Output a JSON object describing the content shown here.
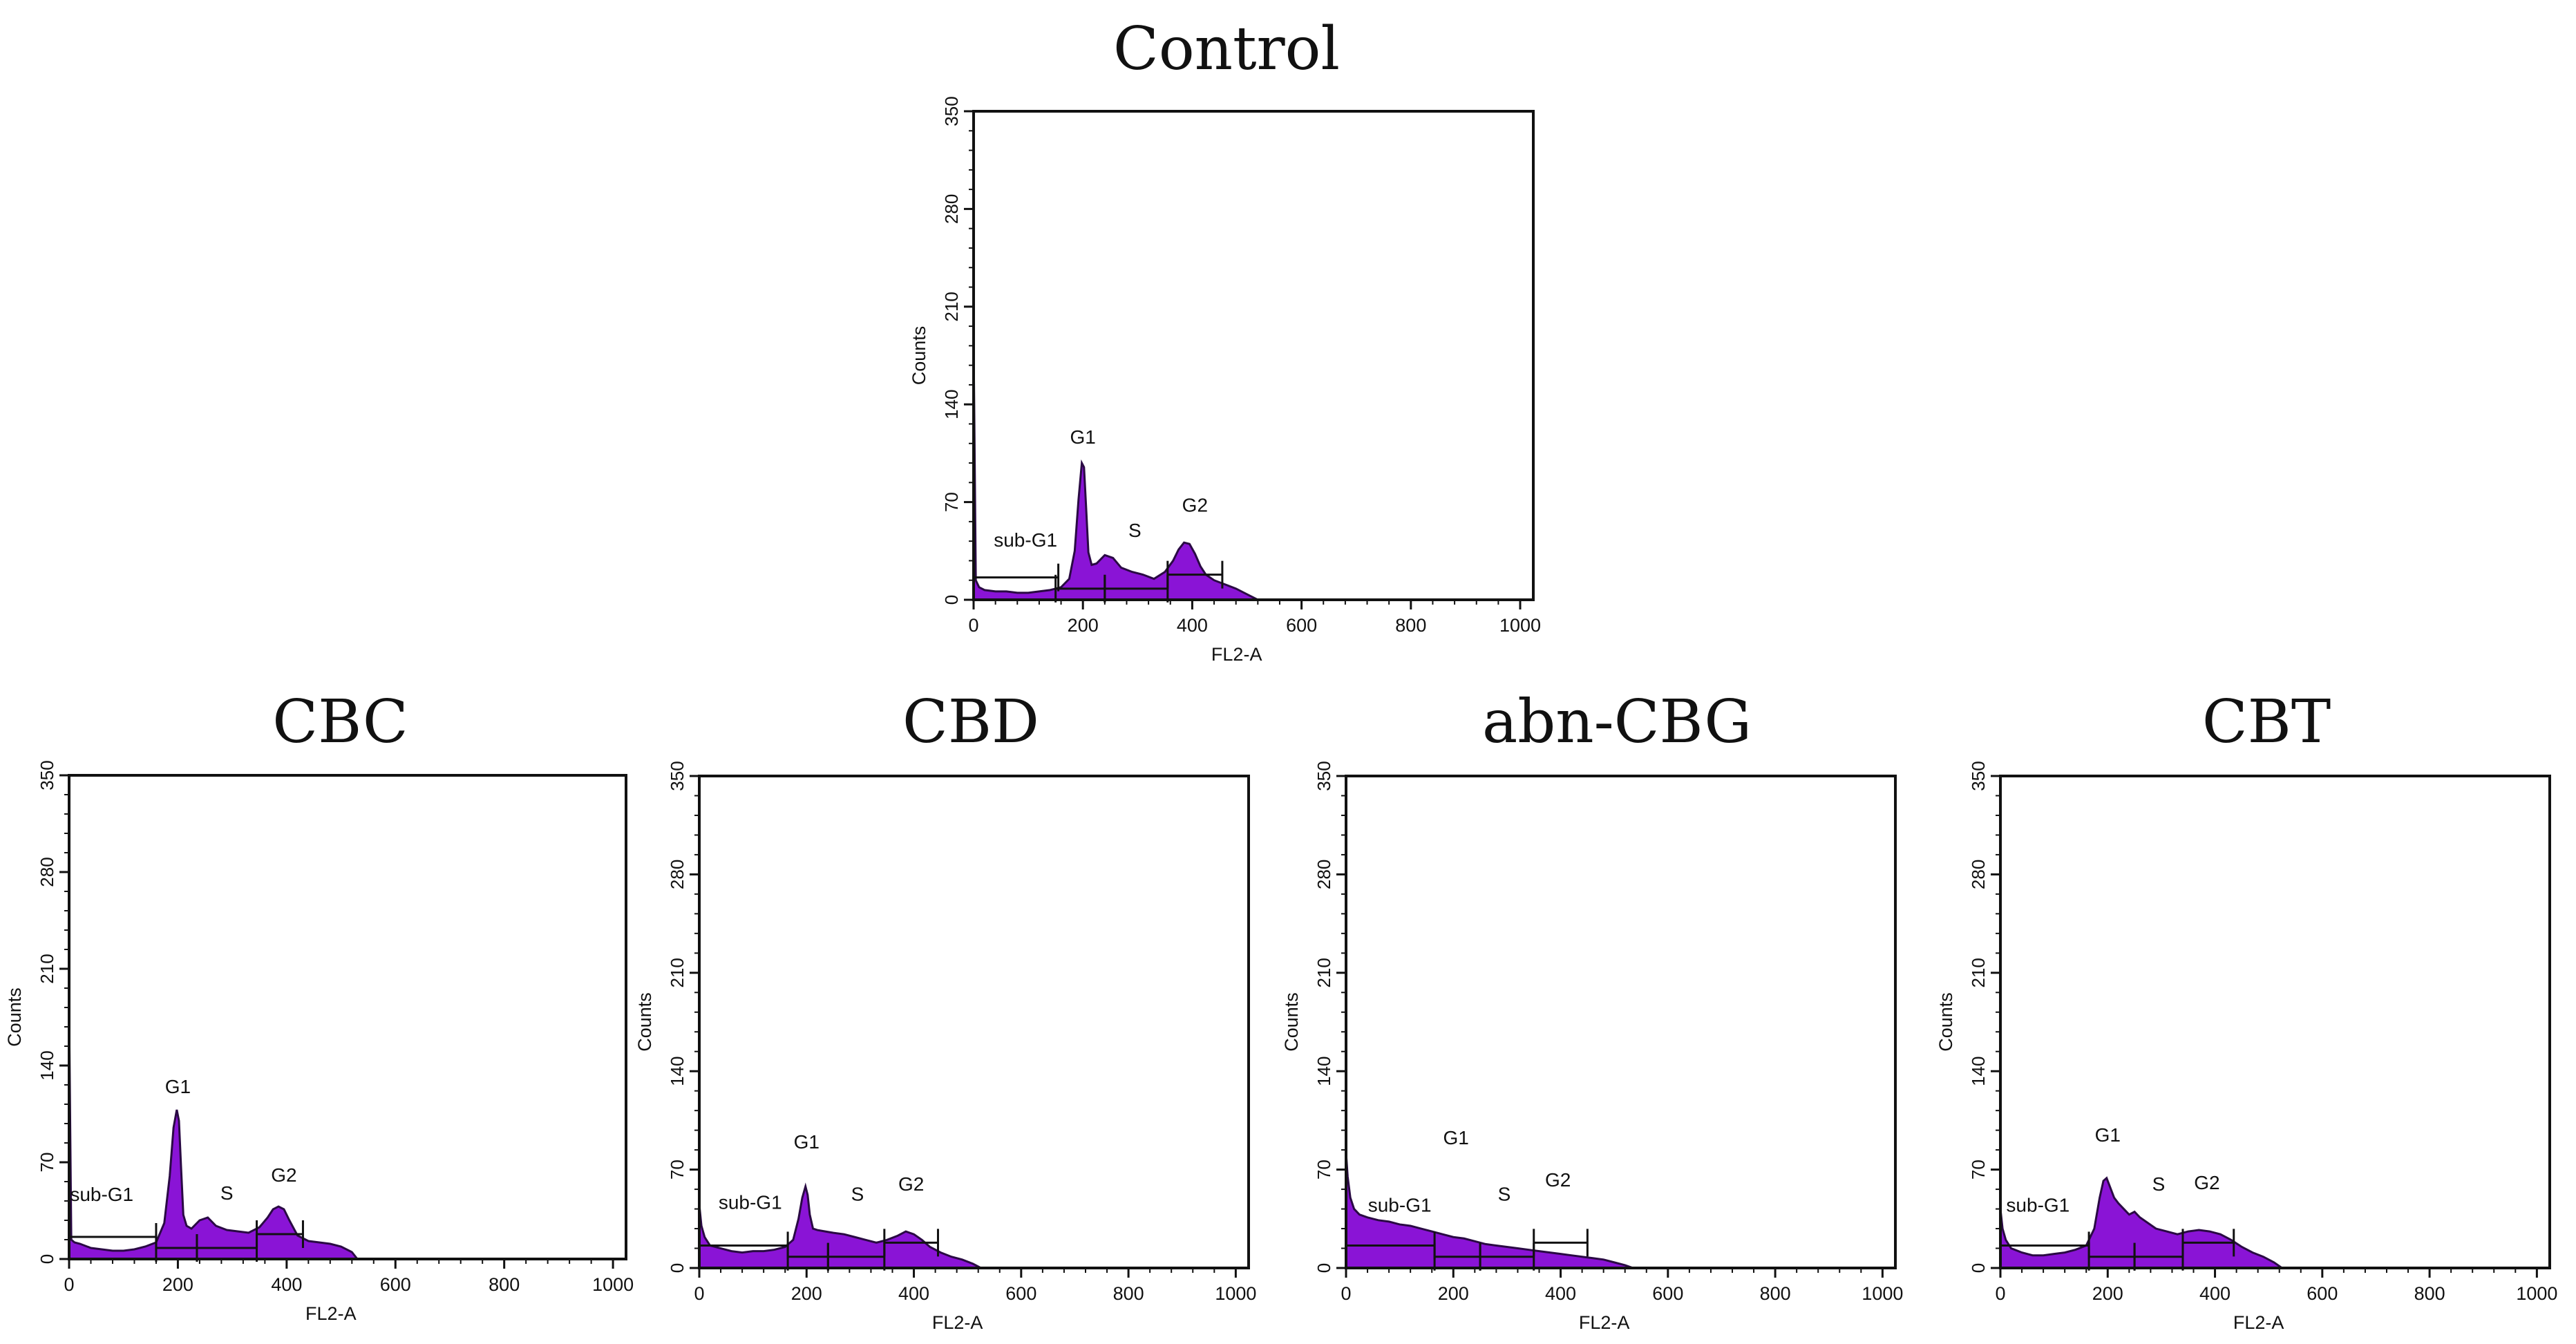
{
  "histogram_color": "#8a14d6",
  "chart_data": [
    {
      "type": "area",
      "title": "Control",
      "xlabel": "FL2-A",
      "ylabel": "Counts",
      "xlim": [
        0,
        1024
      ],
      "ylim": [
        0,
        350
      ],
      "xticks": [
        "0",
        "200",
        "400",
        "600",
        "800",
        "1000"
      ],
      "yticks": [
        "0",
        "70",
        "140",
        "210",
        "280",
        "350"
      ],
      "grid": false,
      "histogram": {
        "x": [
          0,
          4,
          10,
          20,
          40,
          60,
          80,
          100,
          120,
          140,
          160,
          175,
          185,
          192,
          198,
          202,
          206,
          210,
          216,
          225,
          240,
          255,
          270,
          290,
          310,
          330,
          350,
          365,
          375,
          385,
          395,
          405,
          415,
          425,
          440,
          460,
          480,
          500,
          520
        ],
        "y": [
          185,
          14,
          9,
          7,
          6,
          6,
          5,
          5,
          6,
          7,
          9,
          15,
          35,
          72,
          98,
          95,
          65,
          34,
          25,
          26,
          32,
          30,
          23,
          20,
          18,
          15,
          20,
          28,
          36,
          41,
          40,
          33,
          24,
          18,
          14,
          11,
          8,
          4,
          0
        ]
      },
      "gates": [
        {
          "label": "sub-G1",
          "x0": 0,
          "x1": 155,
          "y": 16,
          "label_x": 95,
          "label_y": 38
        },
        {
          "label": "G1",
          "x0": 150,
          "x1": 240,
          "y": 8,
          "label_x": 200,
          "label_y": 112
        },
        {
          "label": "S",
          "x0": 240,
          "x1": 355,
          "y": 8,
          "label_x": 295,
          "label_y": 45
        },
        {
          "label": "G2",
          "x0": 355,
          "x1": 455,
          "y": 18,
          "label_x": 405,
          "label_y": 63
        }
      ]
    },
    {
      "type": "area",
      "title": "CBC",
      "xlabel": "FL2-A",
      "ylabel": "Counts",
      "xlim": [
        0,
        1024
      ],
      "ylim": [
        0,
        350
      ],
      "xticks": [
        "0",
        "200",
        "400",
        "600",
        "800",
        "1000"
      ],
      "yticks": [
        "0",
        "70",
        "140",
        "210",
        "280",
        "350"
      ],
      "grid": false,
      "histogram": {
        "x": [
          0,
          4,
          10,
          20,
          40,
          60,
          80,
          100,
          120,
          140,
          160,
          175,
          185,
          192,
          198,
          202,
          206,
          210,
          216,
          225,
          240,
          255,
          270,
          290,
          310,
          330,
          350,
          365,
          375,
          385,
          395,
          405,
          420,
          440,
          460,
          480,
          500,
          520,
          530
        ],
        "y": [
          180,
          14,
          12,
          11,
          8,
          7,
          6,
          6,
          7,
          9,
          12,
          26,
          60,
          95,
          108,
          100,
          65,
          32,
          24,
          22,
          28,
          30,
          24,
          21,
          20,
          19,
          23,
          30,
          36,
          38,
          36,
          28,
          17,
          13,
          12,
          11,
          9,
          5,
          0
        ]
      },
      "gates": [
        {
          "label": "sub-G1",
          "x0": 0,
          "x1": 160,
          "y": 16,
          "label_x": 60,
          "label_y": 42
        },
        {
          "label": "G1",
          "x0": 160,
          "x1": 235,
          "y": 8,
          "label_x": 200,
          "label_y": 120
        },
        {
          "label": "S",
          "x0": 235,
          "x1": 345,
          "y": 8,
          "label_x": 290,
          "label_y": 43
        },
        {
          "label": "G2",
          "x0": 345,
          "x1": 430,
          "y": 18,
          "label_x": 395,
          "label_y": 56
        }
      ]
    },
    {
      "type": "area",
      "title": "CBD",
      "xlabel": "FL2-A",
      "ylabel": "Counts",
      "xlim": [
        0,
        1024
      ],
      "ylim": [
        0,
        350
      ],
      "xticks": [
        "0",
        "200",
        "400",
        "600",
        "800",
        "1000"
      ],
      "yticks": [
        "0",
        "70",
        "140",
        "210",
        "280",
        "350"
      ],
      "grid": false,
      "histogram": {
        "x": [
          0,
          4,
          10,
          20,
          40,
          60,
          80,
          100,
          120,
          140,
          160,
          175,
          185,
          192,
          198,
          202,
          206,
          212,
          220,
          235,
          250,
          270,
          290,
          310,
          330,
          350,
          370,
          385,
          400,
          415,
          430,
          450,
          470,
          490,
          510,
          525
        ],
        "y": [
          45,
          30,
          22,
          16,
          14,
          12,
          11,
          12,
          12,
          13,
          15,
          20,
          35,
          50,
          58,
          52,
          38,
          28,
          27,
          26,
          25,
          24,
          22,
          20,
          18,
          20,
          23,
          26,
          24,
          20,
          15,
          11,
          8,
          6,
          3,
          0
        ]
      },
      "gates": [
        {
          "label": "sub-G1",
          "x0": 0,
          "x1": 165,
          "y": 16,
          "label_x": 95,
          "label_y": 42
        },
        {
          "label": "G1",
          "x0": 165,
          "x1": 240,
          "y": 8,
          "label_x": 200,
          "label_y": 85
        },
        {
          "label": "S",
          "x0": 240,
          "x1": 345,
          "y": 8,
          "label_x": 295,
          "label_y": 48
        },
        {
          "label": "G2",
          "x0": 345,
          "x1": 445,
          "y": 18,
          "label_x": 395,
          "label_y": 55
        }
      ]
    },
    {
      "type": "area",
      "title": "abn-CBG",
      "xlabel": "FL2-A",
      "ylabel": "Counts",
      "xlim": [
        0,
        1024
      ],
      "ylim": [
        0,
        350
      ],
      "xticks": [
        "0",
        "200",
        "400",
        "600",
        "800",
        "1000"
      ],
      "yticks": [
        "0",
        "70",
        "140",
        "210",
        "280",
        "350"
      ],
      "grid": false,
      "histogram": {
        "x": [
          0,
          3,
          8,
          15,
          25,
          40,
          60,
          80,
          100,
          120,
          140,
          160,
          180,
          200,
          220,
          240,
          260,
          280,
          300,
          320,
          340,
          360,
          380,
          400,
          420,
          440,
          460,
          480,
          500,
          520,
          535
        ],
        "y": [
          82,
          65,
          50,
          42,
          38,
          36,
          34,
          33,
          31,
          30,
          28,
          26,
          24,
          22,
          21,
          19,
          17,
          16,
          15,
          14,
          13,
          12,
          11,
          10,
          9,
          8,
          7,
          6,
          4,
          2,
          0
        ]
      },
      "gates": [
        {
          "label": "sub-G1",
          "x0": 0,
          "x1": 165,
          "y": 16,
          "label_x": 100,
          "label_y": 40
        },
        {
          "label": "G1",
          "x0": 165,
          "x1": 250,
          "y": 8,
          "label_x": 205,
          "label_y": 88
        },
        {
          "label": "S",
          "x0": 250,
          "x1": 350,
          "y": 8,
          "label_x": 295,
          "label_y": 48
        },
        {
          "label": "G2",
          "x0": 350,
          "x1": 450,
          "y": 18,
          "label_x": 395,
          "label_y": 58
        }
      ]
    },
    {
      "type": "area",
      "title": "CBT",
      "xlabel": "FL2-A",
      "ylabel": "Counts",
      "xlim": [
        0,
        1024
      ],
      "ylim": [
        0,
        350
      ],
      "xticks": [
        "0",
        "200",
        "400",
        "600",
        "800",
        "1000"
      ],
      "yticks": [
        "0",
        "70",
        "140",
        "210",
        "280",
        "350"
      ],
      "grid": false,
      "histogram": {
        "x": [
          0,
          4,
          10,
          20,
          40,
          60,
          80,
          100,
          120,
          140,
          160,
          175,
          185,
          192,
          198,
          204,
          212,
          220,
          230,
          240,
          250,
          260,
          275,
          290,
          310,
          330,
          350,
          370,
          390,
          410,
          430,
          450,
          470,
          490,
          510,
          525
        ],
        "y": [
          42,
          28,
          20,
          14,
          11,
          9,
          9,
          10,
          11,
          13,
          16,
          28,
          50,
          62,
          64,
          58,
          50,
          46,
          42,
          38,
          40,
          36,
          32,
          28,
          26,
          24,
          26,
          27,
          26,
          24,
          20,
          15,
          11,
          8,
          4,
          0
        ]
      },
      "gates": [
        {
          "label": "sub-G1",
          "x0": 0,
          "x1": 165,
          "y": 16,
          "label_x": 70,
          "label_y": 40
        },
        {
          "label": "G1",
          "x0": 165,
          "x1": 250,
          "y": 8,
          "label_x": 200,
          "label_y": 90
        },
        {
          "label": "S",
          "x0": 250,
          "x1": 340,
          "y": 8,
          "label_x": 295,
          "label_y": 55
        },
        {
          "label": "G2",
          "x0": 340,
          "x1": 435,
          "y": 18,
          "label_x": 385,
          "label_y": 56
        }
      ]
    }
  ]
}
